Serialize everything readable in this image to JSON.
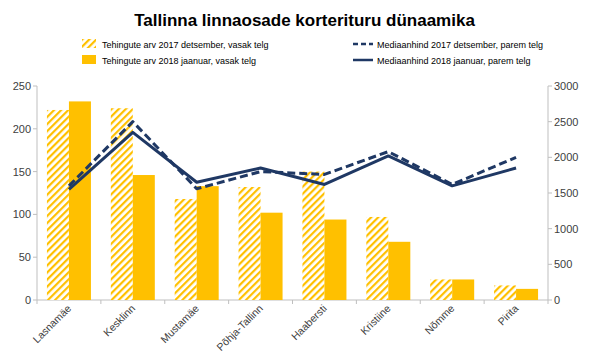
{
  "chart_data": {
    "type": "bar",
    "title": "Tallinna linnaosade korterituru dünaamika",
    "categories": [
      "Lasnamäe",
      "Kesklinn",
      "Mustamäe",
      "Põhja-Tallinn",
      "Haabersti",
      "Kristiine",
      "Nõmme",
      "Pirita"
    ],
    "series": [
      {
        "name": "Tehingute arv 2017 detsember, vasak telg",
        "type": "bar",
        "color": "#ffc000",
        "values": [
          222,
          224,
          118,
          132,
          150,
          97,
          24,
          17
        ]
      },
      {
        "name": "Tehingute arv 2018 jaanuar, vasak telg",
        "type": "bar",
        "color": "#ffc000",
        "values": [
          232,
          146,
          133,
          102,
          94,
          68,
          24,
          13
        ]
      },
      {
        "name": "Mediaanhind 2017 detsember, parem telg",
        "type": "line",
        "axis": "y2",
        "line_style": "dashed",
        "color": "#1f3864",
        "values": [
          1600,
          2500,
          1560,
          1800,
          1760,
          2080,
          1620,
          2000
        ]
      },
      {
        "name": "Mediaanhind 2018 jaanuar, parem telg",
        "type": "line",
        "axis": "y2",
        "line_style": "solid",
        "color": "#1f3864",
        "values": [
          1550,
          2350,
          1650,
          1850,
          1620,
          2020,
          1600,
          1850
        ]
      }
    ],
    "ylim": [
      0,
      250
    ],
    "yticks": [
      0,
      50,
      100,
      150,
      200,
      250
    ],
    "y2lim": [
      0,
      3000
    ],
    "y2ticks": [
      0,
      500,
      1000,
      1500,
      2000,
      2500,
      3000
    ],
    "grid": false,
    "legend": "top"
  }
}
